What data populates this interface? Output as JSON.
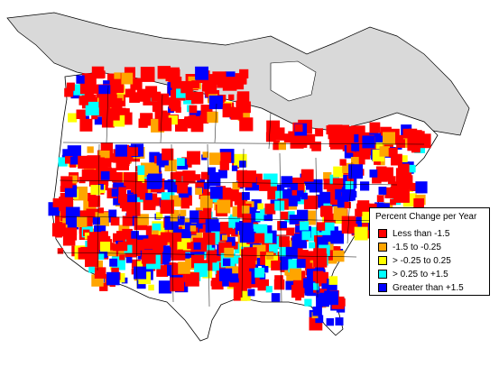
{
  "legend": {
    "title": "Percent Change per Year",
    "items": [
      {
        "label": "Less than -1.5",
        "color": "#ff0000"
      },
      {
        "label": "-1.5 to -0.25",
        "color": "#ffa500"
      },
      {
        "label": "> -0.25 to 0.25",
        "color": "#ffff00"
      },
      {
        "label": "> 0.25 to +1.5",
        "color": "#00ffff"
      },
      {
        "label": "Greater than +1.5",
        "color": "#0000ff"
      }
    ]
  },
  "map": {
    "land_color": "#ffffff",
    "no_data_color": "#d9d9d9",
    "border_color": "#000000"
  }
}
